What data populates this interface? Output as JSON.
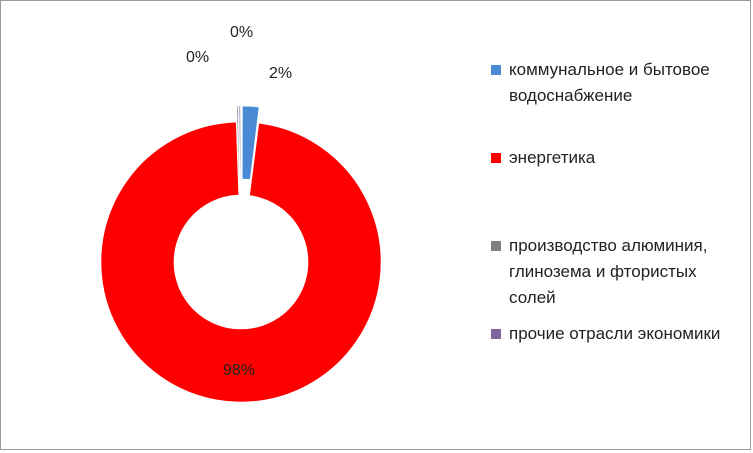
{
  "chart_data": {
    "type": "donut",
    "title": "",
    "categories": [
      "коммунальное и бытовое водоснабжение",
      "энергетика",
      "производство алюминия, глинозема и фтористых солей",
      "прочие отрасли экономики"
    ],
    "values": [
      2,
      98,
      0,
      0
    ],
    "data_labels": [
      "2%",
      "98%",
      "0%",
      "0%"
    ],
    "colors": [
      "#4a8ad4",
      "#ff0000",
      "#7f7f7f",
      "#8064a2"
    ],
    "exploded": [
      true,
      false,
      true,
      true
    ],
    "legend_position": "right"
  }
}
